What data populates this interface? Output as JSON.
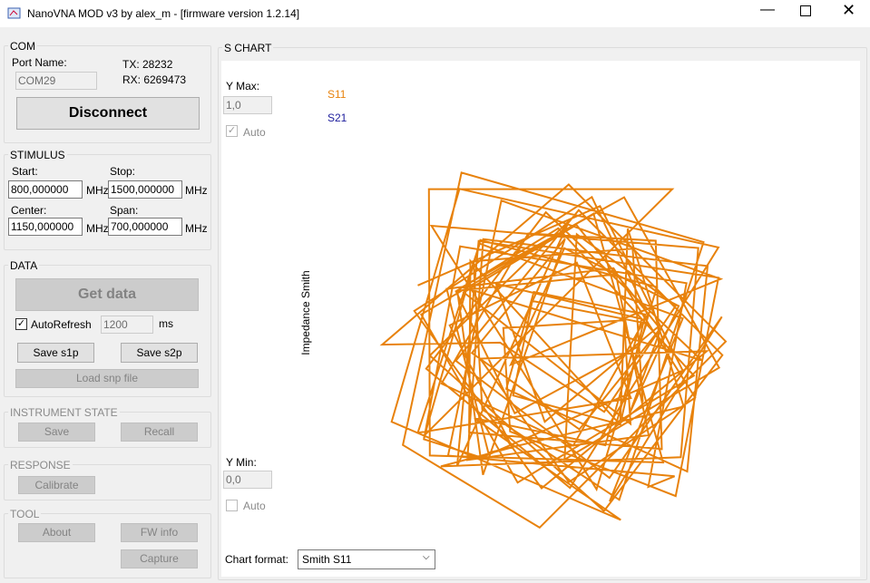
{
  "window": {
    "title": "NanoVNA MOD v3 by alex_m - [firmware version 1.2.14]"
  },
  "com": {
    "label": "COM",
    "port_name_label": "Port Name:",
    "port": "COM29",
    "tx": "TX: 28232",
    "rx": "RX: 6269473",
    "disconnect": "Disconnect"
  },
  "stimulus": {
    "label": "STIMULUS",
    "start_label": "Start:",
    "start": "800,000000",
    "start_unit": "MHz",
    "stop_label": "Stop:",
    "stop": "1500,000000",
    "stop_unit": "MHz",
    "center_label": "Center:",
    "center": "1150,000000",
    "center_unit": "MHz",
    "span_label": "Span:",
    "span": "700,000000",
    "span_unit": "MHz"
  },
  "data": {
    "label": "DATA",
    "get_data": "Get data",
    "auto_refresh": "AutoRefresh",
    "interval": "1200",
    "interval_unit": "ms",
    "save_s1p": "Save s1p",
    "save_s2p": "Save s2p",
    "load_snp": "Load snp file"
  },
  "instrument_state": {
    "label": "INSTRUMENT STATE",
    "save": "Save",
    "recall": "Recall"
  },
  "response": {
    "label": "RESPONSE",
    "calibrate": "Calibrate"
  },
  "tool": {
    "label": "TOOL",
    "about": "About",
    "fw_info": "FW info",
    "capture": "Capture"
  },
  "s_chart": {
    "label": "S CHART",
    "y_max_label": "Y Max:",
    "y_max": "1,0",
    "auto_max": "Auto",
    "y_min_label": "Y Min:",
    "y_min": "0,0",
    "auto_min": "Auto",
    "legend": [
      {
        "name": "S11",
        "color": "#e8820c"
      },
      {
        "name": "S21",
        "color": "#1c1c9c"
      }
    ],
    "y_axis_label": "Impedance Smith",
    "chart_format_label": "Chart format:",
    "chart_format": "Smith S11"
  }
}
